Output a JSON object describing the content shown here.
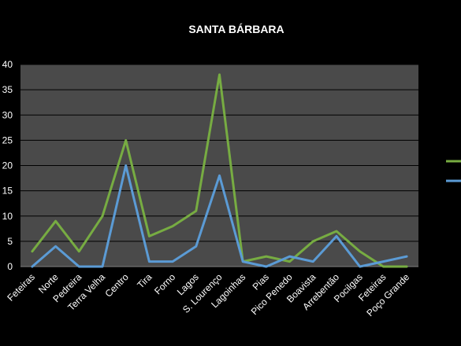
{
  "chart_data": {
    "type": "line",
    "title": "SANTA BÁRBARA",
    "xlabel": "",
    "ylabel": "",
    "ylim": [
      0,
      40
    ],
    "yticks": [
      0,
      5,
      10,
      15,
      20,
      25,
      30,
      35,
      40
    ],
    "grid": true,
    "background": "#000000",
    "plot_background": "#4a4a4a",
    "gridline_color": "#000000",
    "text_color": "#ffffff",
    "categories": [
      "Feteiras",
      "Norte",
      "Pedreira",
      "Terra Velha",
      "Centro",
      "Tira",
      "Forno",
      "Lagos",
      "S. Lourenço",
      "Lagoinhas",
      "Pias",
      "Pico Penedo",
      "Boavista",
      "Arrebentão",
      "Pocilgas",
      "Feteiras",
      "Poço Grande"
    ],
    "series": [
      {
        "color": "#77ac42",
        "values": [
          3,
          9,
          3,
          10,
          25,
          6,
          8,
          11,
          38,
          1,
          2,
          1,
          5,
          7,
          3,
          0,
          0
        ]
      },
      {
        "color": "#5b9bd5",
        "values": [
          0,
          4,
          0,
          0,
          20,
          1,
          1,
          4,
          18,
          1,
          0,
          2,
          1,
          6,
          0,
          1,
          2
        ]
      }
    ],
    "legend": "right",
    "legend_entries": [
      {
        "color": "#77ac42",
        "label": ""
      },
      {
        "color": "#5b9bd5",
        "label": ""
      }
    ]
  }
}
